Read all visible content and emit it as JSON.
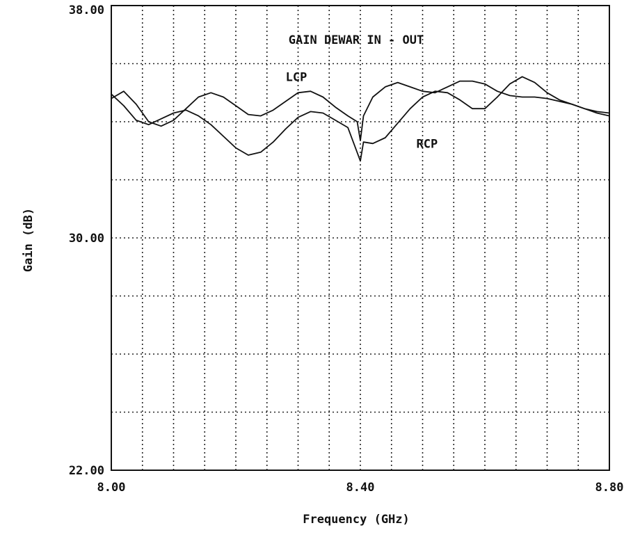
{
  "chart_data": {
    "type": "line",
    "title": "GAIN DEWAR IN - OUT",
    "xlabel": "Frequency (GHz)",
    "ylabel": "Gain (dB)",
    "xlim": [
      8.0,
      8.8
    ],
    "ylim": [
      22.0,
      38.0
    ],
    "x_ticks": [
      "8.00",
      "8.40",
      "8.80"
    ],
    "y_ticks": [
      "22.00",
      "30.00",
      "38.00"
    ],
    "x_grid_step": 0.05,
    "y_grid_step": 2.0,
    "grid": true,
    "series": [
      {
        "name": "LCP",
        "label_at": [
          8.28,
          35.4
        ],
        "points": [
          [
            8.0,
            34.8
          ],
          [
            8.02,
            35.05
          ],
          [
            8.04,
            34.6
          ],
          [
            8.06,
            34.0
          ],
          [
            8.08,
            33.85
          ],
          [
            8.1,
            34.05
          ],
          [
            8.12,
            34.45
          ],
          [
            8.14,
            34.85
          ],
          [
            8.16,
            35.0
          ],
          [
            8.18,
            34.85
          ],
          [
            8.2,
            34.55
          ],
          [
            8.22,
            34.25
          ],
          [
            8.24,
            34.2
          ],
          [
            8.26,
            34.4
          ],
          [
            8.28,
            34.7
          ],
          [
            8.3,
            35.0
          ],
          [
            8.32,
            35.05
          ],
          [
            8.34,
            34.85
          ],
          [
            8.36,
            34.5
          ],
          [
            8.38,
            34.2
          ],
          [
            8.395,
            34.0
          ],
          [
            8.4,
            33.35
          ],
          [
            8.405,
            34.2
          ],
          [
            8.42,
            34.85
          ],
          [
            8.44,
            35.2
          ],
          [
            8.46,
            35.35
          ],
          [
            8.48,
            35.2
          ],
          [
            8.5,
            35.05
          ],
          [
            8.52,
            35.0
          ],
          [
            8.54,
            35.2
          ],
          [
            8.56,
            35.4
          ],
          [
            8.58,
            35.4
          ],
          [
            8.6,
            35.3
          ],
          [
            8.62,
            35.05
          ],
          [
            8.64,
            34.9
          ],
          [
            8.66,
            34.85
          ],
          [
            8.68,
            34.85
          ],
          [
            8.7,
            34.8
          ],
          [
            8.72,
            34.7
          ],
          [
            8.74,
            34.6
          ],
          [
            8.76,
            34.45
          ],
          [
            8.78,
            34.35
          ],
          [
            8.8,
            34.3
          ]
        ]
      },
      {
        "name": "RCP",
        "label_at": [
          8.49,
          33.1
        ],
        "points": [
          [
            8.0,
            34.95
          ],
          [
            8.02,
            34.55
          ],
          [
            8.04,
            34.05
          ],
          [
            8.06,
            33.9
          ],
          [
            8.08,
            34.1
          ],
          [
            8.1,
            34.3
          ],
          [
            8.12,
            34.4
          ],
          [
            8.14,
            34.2
          ],
          [
            8.16,
            33.9
          ],
          [
            8.18,
            33.5
          ],
          [
            8.2,
            33.1
          ],
          [
            8.22,
            32.85
          ],
          [
            8.24,
            32.95
          ],
          [
            8.26,
            33.3
          ],
          [
            8.28,
            33.75
          ],
          [
            8.3,
            34.15
          ],
          [
            8.32,
            34.35
          ],
          [
            8.34,
            34.3
          ],
          [
            8.36,
            34.05
          ],
          [
            8.38,
            33.8
          ],
          [
            8.4,
            32.65
          ],
          [
            8.405,
            33.3
          ],
          [
            8.42,
            33.25
          ],
          [
            8.44,
            33.45
          ],
          [
            8.46,
            33.95
          ],
          [
            8.48,
            34.45
          ],
          [
            8.5,
            34.85
          ],
          [
            8.52,
            35.05
          ],
          [
            8.54,
            35.0
          ],
          [
            8.56,
            34.75
          ],
          [
            8.58,
            34.45
          ],
          [
            8.6,
            34.45
          ],
          [
            8.62,
            34.85
          ],
          [
            8.64,
            35.3
          ],
          [
            8.66,
            35.55
          ],
          [
            8.68,
            35.35
          ],
          [
            8.7,
            35.0
          ],
          [
            8.72,
            34.75
          ],
          [
            8.74,
            34.6
          ],
          [
            8.76,
            34.45
          ],
          [
            8.78,
            34.3
          ],
          [
            8.8,
            34.2
          ]
        ]
      }
    ]
  }
}
